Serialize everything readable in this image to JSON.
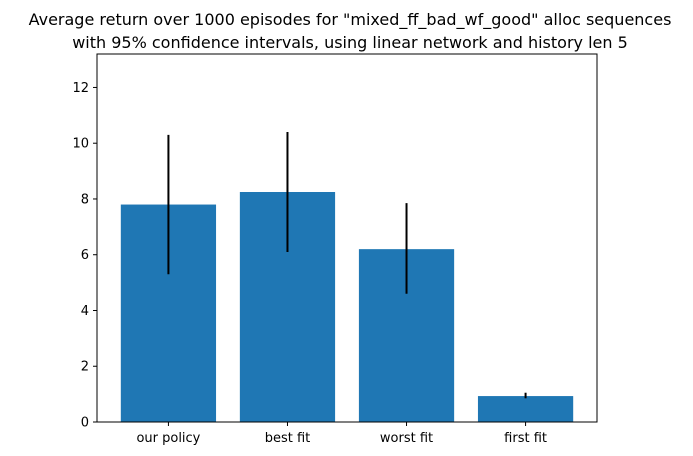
{
  "chart_data": {
    "type": "bar",
    "title": "Average return over 1000 episodes for \"mixed_ff_bad_wf_good\" alloc sequences",
    "subtitle": "with 95% confidence intervals, using linear network and history len 5",
    "xlabel": "",
    "ylabel": "",
    "categories": [
      "our policy",
      "best fit",
      "worst fit",
      "first fit"
    ],
    "values": [
      7.8,
      8.25,
      6.2,
      0.93
    ],
    "error_low": [
      5.3,
      6.1,
      4.6,
      0.85
    ],
    "error_high": [
      10.3,
      10.4,
      7.85,
      1.05
    ],
    "ylim": [
      0,
      13.2
    ],
    "yticks": [
      0,
      2,
      4,
      6,
      8,
      10,
      12
    ],
    "grid": false,
    "bar_color": "#1f77b4",
    "error_color": "#000000"
  }
}
